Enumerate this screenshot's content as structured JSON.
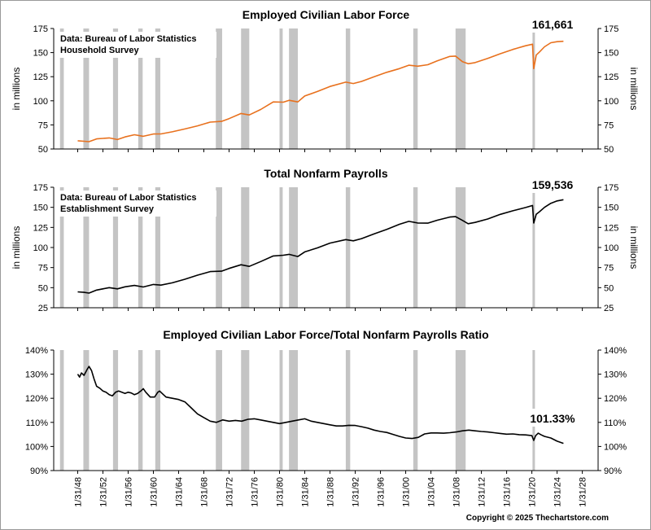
{
  "chart_data": [
    {
      "type": "line",
      "title": "Employed Civilian Labor Force",
      "ylabel_left": "in millions",
      "ylabel_right": "in millions",
      "ylim": [
        50,
        175
      ],
      "yticks": [
        50,
        75,
        100,
        125,
        150,
        175
      ],
      "ytick_labels": [
        "50",
        "75",
        "100",
        "125",
        "150",
        "175"
      ],
      "note": [
        "Data:  Bureau of Labor Statistics",
        "Household Survey"
      ],
      "callout": "161,661",
      "series": [
        {
          "color": "#e8711e",
          "points": [
            [
              1948.0,
              58.5
            ],
            [
              1949.0,
              58.0
            ],
            [
              1949.8,
              57.6
            ],
            [
              1951.0,
              60.5
            ],
            [
              1953.0,
              61.5
            ],
            [
              1954.3,
              59.8
            ],
            [
              1955.5,
              62.5
            ],
            [
              1957.0,
              64.8
            ],
            [
              1958.4,
              63.2
            ],
            [
              1960.0,
              65.5
            ],
            [
              1961.2,
              65.6
            ],
            [
              1963.0,
              67.8
            ],
            [
              1965.0,
              70.8
            ],
            [
              1967.0,
              74.0
            ],
            [
              1969.0,
              77.9
            ],
            [
              1970.8,
              78.6
            ],
            [
              1972.0,
              81.5
            ],
            [
              1973.9,
              86.8
            ],
            [
              1975.2,
              85.3
            ],
            [
              1977.0,
              91.0
            ],
            [
              1979.0,
              98.8
            ],
            [
              1980.6,
              98.6
            ],
            [
              1981.5,
              100.5
            ],
            [
              1982.9,
              98.8
            ],
            [
              1984.0,
              105.0
            ],
            [
              1986.0,
              109.6
            ],
            [
              1988.0,
              114.9
            ],
            [
              1990.5,
              119.3
            ],
            [
              1991.7,
              117.9
            ],
            [
              1993.0,
              120.1
            ],
            [
              1995.0,
              124.9
            ],
            [
              1997.0,
              129.6
            ],
            [
              1999.0,
              133.4
            ],
            [
              2000.5,
              136.9
            ],
            [
              2001.9,
              135.9
            ],
            [
              2003.5,
              137.4
            ],
            [
              2005.0,
              141.5
            ],
            [
              2007.0,
              146.0
            ],
            [
              2007.9,
              146.4
            ],
            [
              2009.0,
              140.5
            ],
            [
              2009.9,
              138.4
            ],
            [
              2011.0,
              139.6
            ],
            [
              2013.0,
              143.9
            ],
            [
              2015.0,
              148.8
            ],
            [
              2017.0,
              153.3
            ],
            [
              2019.0,
              157.1
            ],
            [
              2020.1,
              158.7
            ],
            [
              2020.3,
              133.4
            ],
            [
              2020.7,
              147.5
            ],
            [
              2021.2,
              150.6
            ],
            [
              2022.0,
              156.0
            ],
            [
              2023.0,
              160.2
            ],
            [
              2024.0,
              161.3
            ],
            [
              2025.0,
              161.7
            ]
          ]
        }
      ]
    },
    {
      "type": "line",
      "title": "Total Nonfarm Payrolls",
      "ylabel_left": "in millions",
      "ylabel_right": "in millions",
      "ylim": [
        25,
        175
      ],
      "yticks": [
        25,
        50,
        75,
        100,
        125,
        150,
        175
      ],
      "ytick_labels": [
        "25",
        "50",
        "75",
        "100",
        "125",
        "150",
        "175"
      ],
      "note": [
        "Data:  Bureau of Labor Statistics",
        "Establishment Survey"
      ],
      "callout": "159,536",
      "series": [
        {
          "color": "#000000",
          "points": [
            [
              1948.0,
              44.8
            ],
            [
              1949.0,
              44.2
            ],
            [
              1949.8,
              43.2
            ],
            [
              1951.0,
              47.0
            ],
            [
              1953.0,
              50.0
            ],
            [
              1954.3,
              48.5
            ],
            [
              1955.5,
              51.0
            ],
            [
              1957.0,
              52.8
            ],
            [
              1958.4,
              50.8
            ],
            [
              1960.0,
              54.0
            ],
            [
              1961.2,
              53.2
            ],
            [
              1963.0,
              56.0
            ],
            [
              1965.0,
              60.5
            ],
            [
              1967.0,
              65.5
            ],
            [
              1969.0,
              70.0
            ],
            [
              1970.8,
              70.5
            ],
            [
              1972.0,
              74.0
            ],
            [
              1973.9,
              78.5
            ],
            [
              1975.2,
              76.5
            ],
            [
              1977.0,
              82.5
            ],
            [
              1979.0,
              89.5
            ],
            [
              1980.6,
              90.4
            ],
            [
              1981.5,
              91.5
            ],
            [
              1982.9,
              88.8
            ],
            [
              1984.0,
              94.5
            ],
            [
              1986.0,
              99.5
            ],
            [
              1988.0,
              105.5
            ],
            [
              1990.5,
              109.8
            ],
            [
              1991.7,
              108.3
            ],
            [
              1993.0,
              111.0
            ],
            [
              1995.0,
              117.0
            ],
            [
              1997.0,
              122.5
            ],
            [
              1999.0,
              128.9
            ],
            [
              2000.5,
              132.5
            ],
            [
              2001.9,
              130.5
            ],
            [
              2003.5,
              130.3
            ],
            [
              2005.0,
              134.0
            ],
            [
              2007.0,
              137.9
            ],
            [
              2007.9,
              138.4
            ],
            [
              2009.0,
              133.8
            ],
            [
              2009.9,
              129.6
            ],
            [
              2011.0,
              131.2
            ],
            [
              2013.0,
              135.5
            ],
            [
              2015.0,
              141.2
            ],
            [
              2017.0,
              145.7
            ],
            [
              2019.0,
              149.8
            ],
            [
              2020.1,
              152.3
            ],
            [
              2020.3,
              130.4
            ],
            [
              2020.7,
              141.5
            ],
            [
              2021.2,
              144.5
            ],
            [
              2022.0,
              150.0
            ],
            [
              2023.0,
              155.0
            ],
            [
              2024.0,
              158.0
            ],
            [
              2025.0,
              159.5
            ]
          ]
        }
      ]
    },
    {
      "type": "line",
      "title": "Employed Civilian Labor Force/Total Nonfarm Payrolls Ratio",
      "ylim": [
        90,
        140
      ],
      "yticks": [
        90,
        100,
        110,
        120,
        130,
        140
      ],
      "ytick_labels": [
        "90%",
        "100%",
        "110%",
        "120%",
        "130%",
        "140%"
      ],
      "callout": "101.33%",
      "series": [
        {
          "color": "#000000",
          "points": [
            [
              1948.0,
              130.0
            ],
            [
              1948.3,
              128.8
            ],
            [
              1948.6,
              130.5
            ],
            [
              1949.0,
              129.5
            ],
            [
              1949.5,
              132.0
            ],
            [
              1949.8,
              133.2
            ],
            [
              1950.2,
              131.5
            ],
            [
              1950.6,
              128.0
            ],
            [
              1951.0,
              125.0
            ],
            [
              1951.5,
              124.2
            ],
            [
              1952.0,
              123.0
            ],
            [
              1952.5,
              122.5
            ],
            [
              1953.0,
              121.5
            ],
            [
              1953.5,
              121.0
            ],
            [
              1954.0,
              122.5
            ],
            [
              1954.5,
              123.0
            ],
            [
              1955.0,
              122.5
            ],
            [
              1955.5,
              122.0
            ],
            [
              1956.0,
              122.5
            ],
            [
              1956.5,
              122.2
            ],
            [
              1957.0,
              121.5
            ],
            [
              1957.5,
              122.0
            ],
            [
              1958.0,
              123.0
            ],
            [
              1958.4,
              124.0
            ],
            [
              1958.8,
              122.5
            ],
            [
              1959.5,
              120.5
            ],
            [
              1960.2,
              120.5
            ],
            [
              1960.7,
              122.5
            ],
            [
              1961.0,
              123.0
            ],
            [
              1961.4,
              122.0
            ],
            [
              1962.0,
              120.5
            ],
            [
              1963.0,
              120.0
            ],
            [
              1964.0,
              119.5
            ],
            [
              1965.0,
              118.5
            ],
            [
              1966.0,
              116.0
            ],
            [
              1967.0,
              113.5
            ],
            [
              1968.0,
              112.0
            ],
            [
              1969.0,
              110.5
            ],
            [
              1970.0,
              110.0
            ],
            [
              1971.0,
              111.0
            ],
            [
              1972.0,
              110.5
            ],
            [
              1973.0,
              110.8
            ],
            [
              1974.0,
              110.5
            ],
            [
              1975.0,
              111.3
            ],
            [
              1976.0,
              111.5
            ],
            [
              1977.0,
              111.0
            ],
            [
              1978.0,
              110.5
            ],
            [
              1979.0,
              110.0
            ],
            [
              1980.0,
              109.5
            ],
            [
              1981.0,
              110.0
            ],
            [
              1982.0,
              110.5
            ],
            [
              1983.0,
              111.0
            ],
            [
              1984.0,
              111.5
            ],
            [
              1985.0,
              110.5
            ],
            [
              1986.0,
              110.0
            ],
            [
              1987.0,
              109.5
            ],
            [
              1988.0,
              109.0
            ],
            [
              1989.0,
              108.5
            ],
            [
              1990.0,
              108.5
            ],
            [
              1991.0,
              108.8
            ],
            [
              1992.0,
              108.7
            ],
            [
              1993.0,
              108.2
            ],
            [
              1994.0,
              107.6
            ],
            [
              1995.0,
              106.8
            ],
            [
              1996.0,
              106.2
            ],
            [
              1997.0,
              105.8
            ],
            [
              1998.0,
              105.0
            ],
            [
              1999.0,
              104.2
            ],
            [
              2000.0,
              103.5
            ],
            [
              2001.0,
              103.3
            ],
            [
              2002.0,
              103.8
            ],
            [
              2003.0,
              105.2
            ],
            [
              2004.0,
              105.6
            ],
            [
              2005.0,
              105.6
            ],
            [
              2006.0,
              105.5
            ],
            [
              2007.0,
              105.7
            ],
            [
              2008.0,
              106.0
            ],
            [
              2009.0,
              106.5
            ],
            [
              2010.0,
              106.8
            ],
            [
              2011.0,
              106.5
            ],
            [
              2012.0,
              106.2
            ],
            [
              2013.0,
              106.0
            ],
            [
              2014.0,
              105.7
            ],
            [
              2015.0,
              105.4
            ],
            [
              2016.0,
              105.1
            ],
            [
              2017.0,
              105.2
            ],
            [
              2018.0,
              104.9
            ],
            [
              2019.0,
              104.8
            ],
            [
              2020.0,
              104.5
            ],
            [
              2020.3,
              102.5
            ],
            [
              2020.6,
              104.5
            ],
            [
              2021.0,
              105.5
            ],
            [
              2021.5,
              104.8
            ],
            [
              2022.0,
              104.2
            ],
            [
              2023.0,
              103.5
            ],
            [
              2024.0,
              102.2
            ],
            [
              2025.0,
              101.3
            ]
          ]
        }
      ]
    }
  ],
  "x_axis": {
    "min": 1944.2,
    "max": 2030.5,
    "ticks": [
      1948,
      1952,
      1956,
      1960,
      1964,
      1968,
      1972,
      1976,
      1980,
      1984,
      1988,
      1992,
      1996,
      2000,
      2004,
      2008,
      2012,
      2016,
      2020,
      2024,
      2028
    ],
    "tick_labels": [
      "1/31/48",
      "1/31/52",
      "1/31/56",
      "1/31/60",
      "1/31/64",
      "1/31/68",
      "1/31/72",
      "1/31/76",
      "1/31/80",
      "1/31/84",
      "1/31/88",
      "1/31/92",
      "1/31/96",
      "1/31/00",
      "1/31/04",
      "1/31/08",
      "1/31/12",
      "1/31/16",
      "1/31/20",
      "1/31/24",
      "1/31/28"
    ]
  },
  "recessions": [
    [
      1945.2,
      1945.8
    ],
    [
      1948.9,
      1949.8
    ],
    [
      1953.6,
      1954.4
    ],
    [
      1957.6,
      1958.3
    ],
    [
      1960.3,
      1961.1
    ],
    [
      1969.9,
      1970.9
    ],
    [
      1973.9,
      1975.2
    ],
    [
      1980.0,
      1980.5
    ],
    [
      1981.5,
      1982.9
    ],
    [
      1990.5,
      1991.2
    ],
    [
      2001.2,
      2001.9
    ],
    [
      2007.9,
      2009.5
    ],
    [
      2020.1,
      2020.3
    ]
  ],
  "copyright": "Copyright © 2025 Thechartstore.com"
}
